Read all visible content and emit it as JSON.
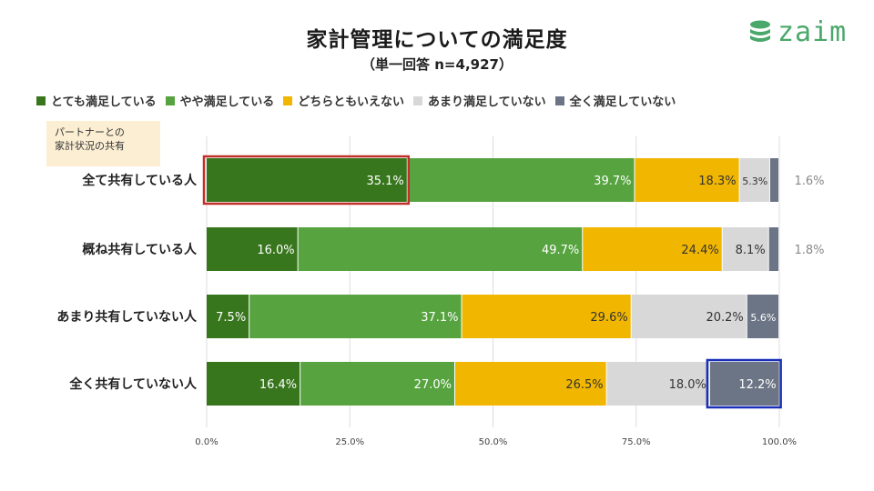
{
  "header": {
    "title": "家計管理についての満足度",
    "subtitle": "（単一回答 n=4,927）",
    "logo_text": "zaim"
  },
  "callout": {
    "line1": "パートナーとの",
    "line2": "家計状況の共有"
  },
  "chart_data": {
    "type": "bar",
    "orientation": "horizontal",
    "stacked": true,
    "title": "家計管理についての満足度",
    "subtitle": "（単一回答 n=4,927）",
    "categories": [
      "全て共有している人",
      "概ね共有している人",
      "あまり共有していない人",
      "全く共有していない人"
    ],
    "series": [
      {
        "name": "とても満足している",
        "color": "#38761d",
        "values": [
          35.1,
          16.0,
          7.5,
          16.4
        ],
        "labels": [
          "35.1%",
          "16.0%",
          "7.5%",
          "16.4%"
        ]
      },
      {
        "name": "やや満足している",
        "color": "#56a33f",
        "values": [
          39.7,
          49.7,
          37.1,
          27.0
        ],
        "labels": [
          "39.7%",
          "49.7%",
          "37.1%",
          "27.0%"
        ]
      },
      {
        "name": "どちらともいえない",
        "color": "#f1b600",
        "values": [
          18.3,
          24.4,
          29.6,
          26.5
        ],
        "labels": [
          "18.3%",
          "24.4%",
          "29.6%",
          "26.5%"
        ]
      },
      {
        "name": "あまり満足していない",
        "color": "#d8d8d8",
        "values": [
          5.3,
          8.1,
          20.2,
          18.0
        ],
        "labels": [
          "5.3%",
          "8.1%",
          "20.2%",
          "18.0%"
        ]
      },
      {
        "name": "全く満足していない",
        "color": "#6b7585",
        "values": [
          1.6,
          1.8,
          5.6,
          12.2
        ],
        "labels": [
          "1.6%",
          "1.8%",
          "5.6%",
          "12.2%"
        ]
      }
    ],
    "label_colors": [
      "#ffffff",
      "#ffffff",
      "#333333",
      "#333333",
      "#ffffff"
    ],
    "outside_labels": [
      true,
      true,
      false,
      false
    ],
    "xlim": [
      0,
      100
    ],
    "xticks": [
      "0.0%",
      "25.0%",
      "50.0%",
      "75.0%",
      "100.0%"
    ],
    "xtick_values": [
      0,
      25,
      50,
      75,
      100
    ],
    "grid": true,
    "legend_position": "top",
    "highlights": [
      {
        "category": 0,
        "series": 0,
        "color": "#c0302a"
      },
      {
        "category": 3,
        "series": 4,
        "color": "#1a2fb8"
      }
    ]
  }
}
